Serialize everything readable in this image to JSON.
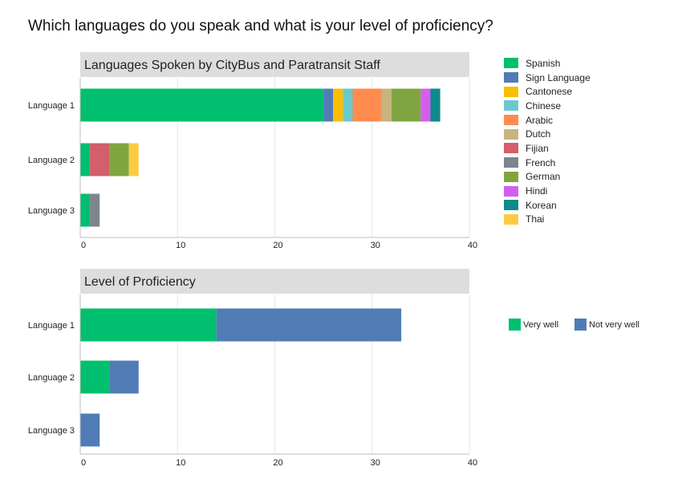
{
  "question": "Which languages do you speak and what is your level of proficiency?",
  "chart_data": [
    {
      "type": "bar",
      "orientation": "horizontal",
      "stacked": true,
      "title": "Languages Spoken by CityBus and Paratransit Staff",
      "categories": [
        "Language 1",
        "Language 2",
        "Language 3"
      ],
      "xlim": [
        0,
        40
      ],
      "xticks": [
        0,
        10,
        20,
        30,
        40
      ],
      "grid": true,
      "legend_position": "right",
      "series": [
        {
          "name": "Spanish",
          "color": "#00bf6f",
          "values": [
            25,
            1,
            1
          ]
        },
        {
          "name": "Sign Language",
          "color": "#507cb6",
          "values": [
            1,
            0,
            0
          ]
        },
        {
          "name": "Cantonese",
          "color": "#f9be00",
          "values": [
            1,
            0,
            0
          ]
        },
        {
          "name": "Chinese",
          "color": "#6bc8cd",
          "values": [
            1,
            0,
            0
          ]
        },
        {
          "name": "Arabic",
          "color": "#ff8b4f",
          "values": [
            3,
            0,
            0
          ]
        },
        {
          "name": "Dutch",
          "color": "#c8b47e",
          "values": [
            1,
            0,
            0
          ]
        },
        {
          "name": "Fijian",
          "color": "#d25f6a",
          "values": [
            0,
            2,
            0
          ]
        },
        {
          "name": "French",
          "color": "#7d868c",
          "values": [
            0,
            0,
            1
          ]
        },
        {
          "name": "German",
          "color": "#7fa540",
          "values": [
            3,
            2,
            0
          ]
        },
        {
          "name": "Hindi",
          "color": "#d25ff0",
          "values": [
            1,
            0,
            0
          ]
        },
        {
          "name": "Korean",
          "color": "#0e8a8a",
          "values": [
            1,
            0,
            0
          ]
        },
        {
          "name": "Thai",
          "color": "#fccb42",
          "values": [
            0,
            1,
            0
          ]
        }
      ]
    },
    {
      "type": "bar",
      "orientation": "horizontal",
      "stacked": true,
      "title": "Level of Proficiency",
      "categories": [
        "Language 1",
        "Language 2",
        "Language 3"
      ],
      "xlim": [
        0,
        40
      ],
      "xticks": [
        0,
        10,
        20,
        30,
        40
      ],
      "grid": true,
      "legend_position": "right",
      "series": [
        {
          "name": "Very well",
          "color": "#00bf6f",
          "values": [
            14,
            3,
            0
          ]
        },
        {
          "name": "Not very well",
          "color": "#507cb6",
          "values": [
            19,
            3,
            2
          ]
        }
      ]
    }
  ]
}
